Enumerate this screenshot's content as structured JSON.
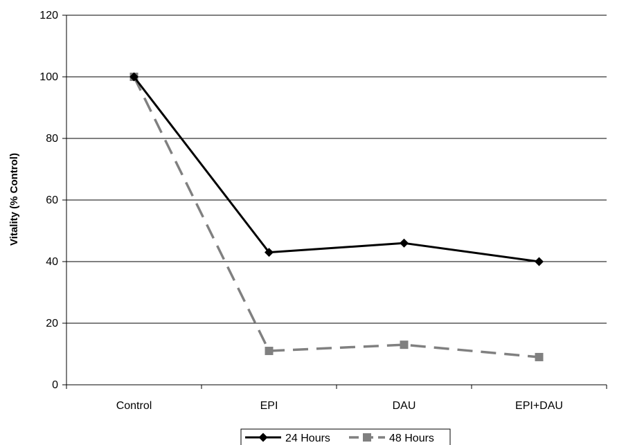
{
  "chart_data": {
    "type": "line",
    "title": "",
    "xlabel": "",
    "ylabel": "Vitality (% Control)",
    "categories": [
      "Control",
      "EPI",
      "DAU",
      "EPI+DAU"
    ],
    "ylim": [
      0,
      120
    ],
    "yticks": [
      "0",
      "20",
      "40",
      "60",
      "80",
      "100",
      "120"
    ],
    "grid": true,
    "legend_position": "bottom",
    "series": [
      {
        "name": "24 Hours",
        "values": [
          100,
          43,
          46,
          40
        ],
        "color": "#000000",
        "style": "solid",
        "marker": "diamond"
      },
      {
        "name": "48 Hours",
        "values": [
          100,
          11,
          13,
          9
        ],
        "color": "#808080",
        "style": "dashed",
        "marker": "square"
      }
    ]
  }
}
